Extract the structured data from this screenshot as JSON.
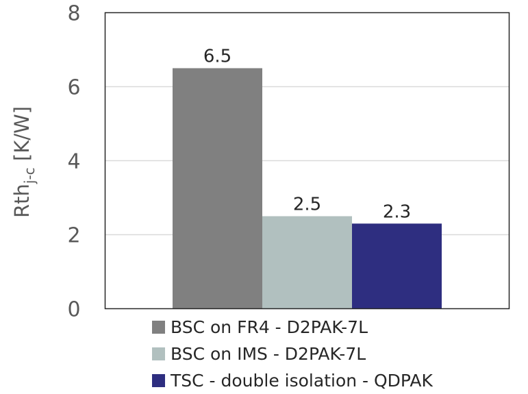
{
  "chart_data": {
    "type": "bar",
    "categories": [
      "BSC on FR4 - D2PAK-7L",
      "BSC on IMS - D2PAK-7L",
      "TSC - double isolation - QDPAK"
    ],
    "values": [
      6.5,
      2.5,
      2.3
    ],
    "data_labels": [
      "6.5",
      "2.5",
      "2.3"
    ],
    "colors": [
      "#808080",
      "#b1c0bf",
      "#2e2e80"
    ],
    "ylabel_main": "Rth",
    "ylabel_sub": "j-c",
    "ylabel_unit": " [K/W]",
    "ylim": [
      0,
      8
    ],
    "yticks": [
      "0",
      "2",
      "4",
      "6",
      "8"
    ],
    "grid": true,
    "legend_position": "bottom"
  }
}
